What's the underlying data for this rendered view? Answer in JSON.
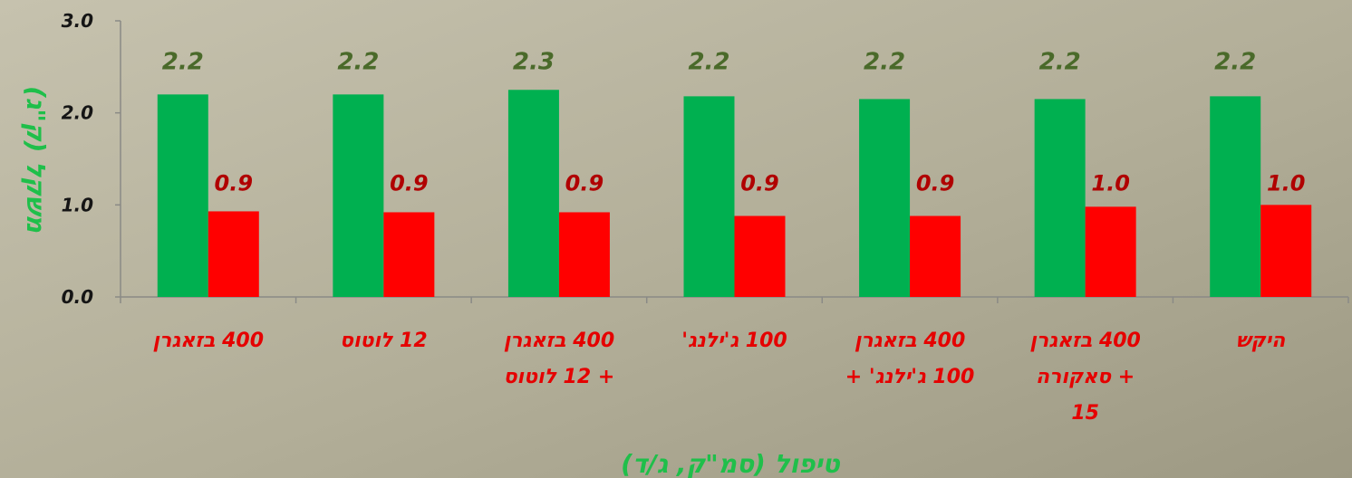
{
  "chart_data": {
    "type": "bar",
    "title": "",
    "xlabel": "טיפול (סמ\"ק, ג/ד)",
    "ylabel": "משקל (ק\"ג)",
    "ylim": [
      0,
      3.0
    ],
    "yticks": [
      "0.0",
      "1.0",
      "2.0",
      "3.0"
    ],
    "grid": false,
    "legend": "none",
    "categories": [
      [
        "400 בזאגרן"
      ],
      [
        "12 לוטוס"
      ],
      [
        "400 בזאגרן",
        "+ 12 לוטוס"
      ],
      [
        "100 ג'ילנג'"
      ],
      [
        "400 בזאגרן",
        "100 ג'ילנג' +"
      ],
      [
        "400 בזאגרן",
        "+ סאקורה",
        "15"
      ],
      [
        "היקש"
      ]
    ],
    "series": [
      {
        "color": "#00b050",
        "values": [
          2.2,
          2.2,
          2.25,
          2.18,
          2.15,
          2.15,
          2.18
        ],
        "labels": [
          "2.2",
          "2.2",
          "2.3",
          "2.2",
          "2.2",
          "2.2",
          "2.2"
        ]
      },
      {
        "color": "#ff0000",
        "values": [
          0.93,
          0.92,
          0.92,
          0.88,
          0.88,
          0.98,
          1.0
        ],
        "labels": [
          "0.9",
          "0.9",
          "0.9",
          "0.9",
          "0.9",
          "1.0",
          "1.0"
        ]
      }
    ]
  }
}
